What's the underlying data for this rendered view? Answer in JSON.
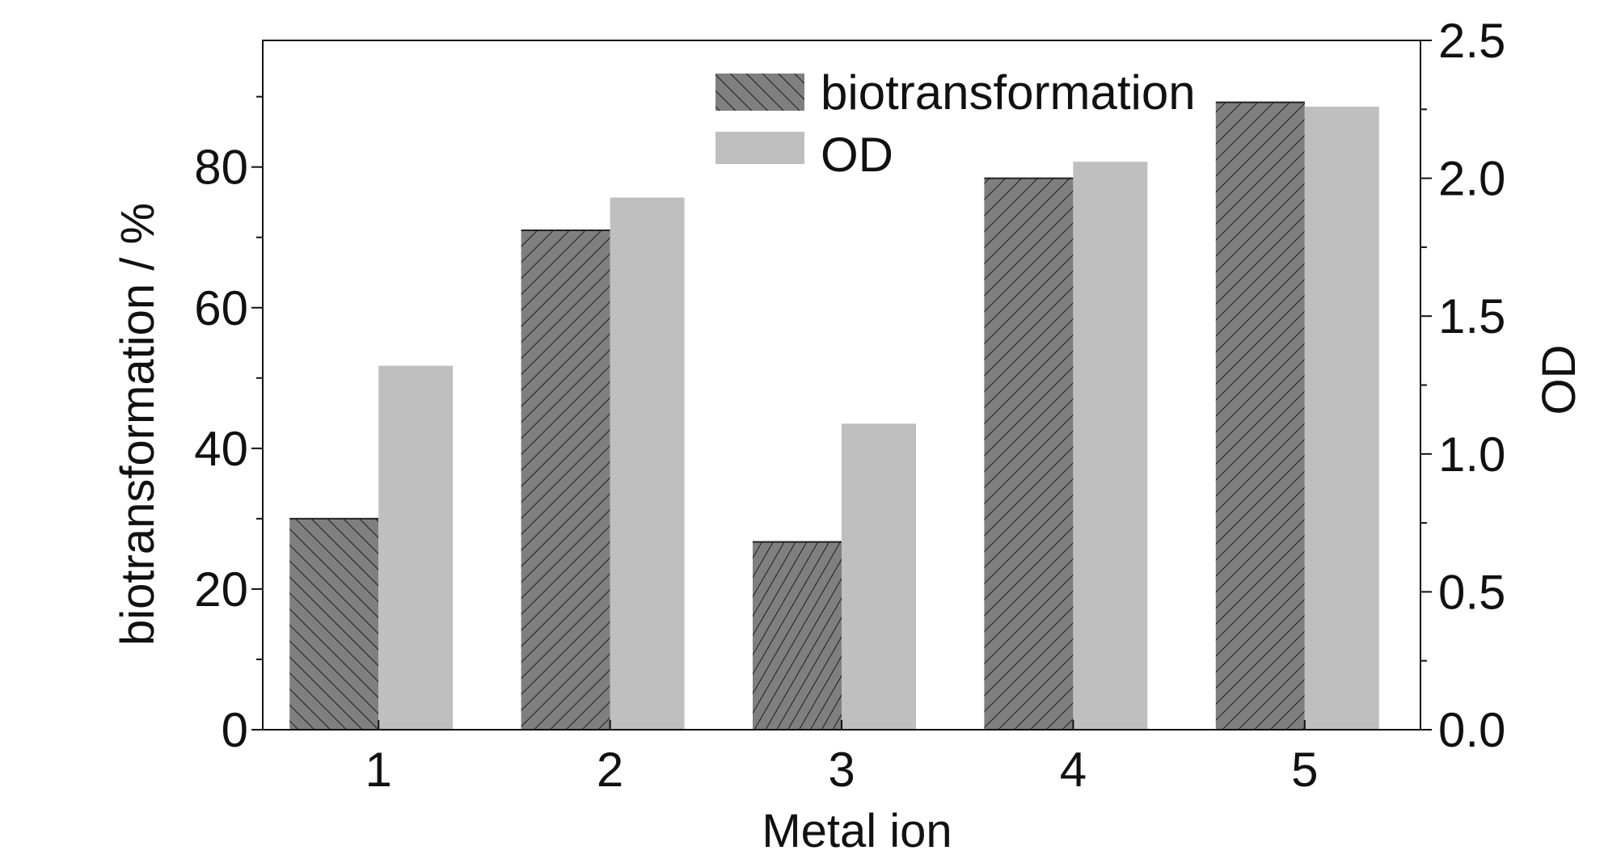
{
  "chart_data": {
    "type": "bar",
    "title": "",
    "xlabel": "Metal ion",
    "ylabel": "biotransformation / %",
    "y2label": "OD",
    "categories": [
      "1",
      "2",
      "3",
      "4",
      "5"
    ],
    "ylim": [
      0,
      98
    ],
    "y2lim": [
      0,
      2.5
    ],
    "yticks": [
      "0",
      "20",
      "40",
      "60",
      "80"
    ],
    "y2ticks": [
      "0.0",
      "0.5",
      "1.0",
      "1.5",
      "2.0",
      "2.5"
    ],
    "legend_position": "top-center",
    "grid": false,
    "series": [
      {
        "name": "biotransformation",
        "axis": "left",
        "values": [
          30,
          71,
          26.7,
          78.4,
          89.2
        ],
        "fill_color": "#7f7f7f",
        "hatch": "diagonal lines"
      },
      {
        "name": "OD",
        "axis": "right",
        "values": [
          1.32,
          1.93,
          1.11,
          2.06,
          2.26
        ],
        "fill_color": "#bfbfbf"
      }
    ]
  }
}
